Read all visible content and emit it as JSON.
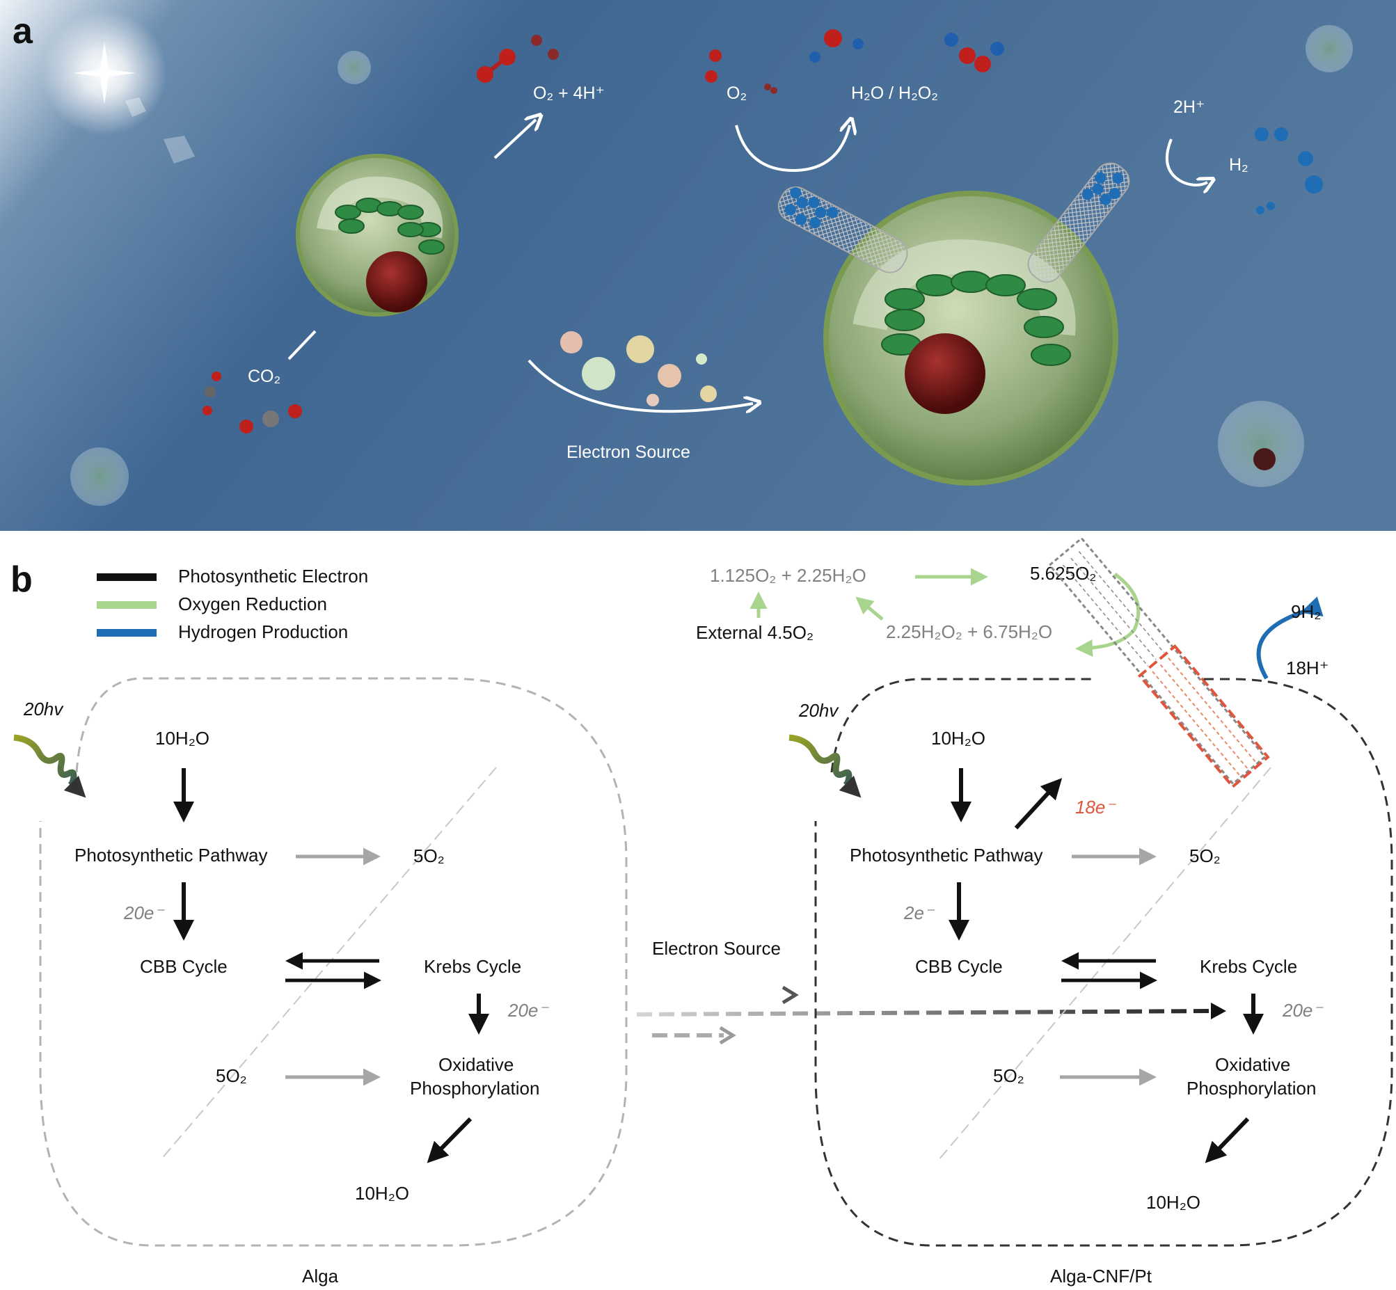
{
  "panel_a": {
    "letter": "a",
    "o2_4h": "O₂ + 4H⁺",
    "o2": "O₂",
    "h2o_h2o2": "H₂O / H₂O₂",
    "two_h": "2H⁺",
    "h2": "H₂",
    "co2": "CO₂",
    "electron_source": "Electron Source"
  },
  "panel_b": {
    "letter": "b",
    "legend": [
      {
        "label": "Photosynthetic Electron",
        "color": "#111111"
      },
      {
        "label": "Oxygen Reduction",
        "color": "#a8d48e"
      },
      {
        "label": "Hydrogen Production",
        "color": "#1f6db5"
      }
    ],
    "top": {
      "o2_h2o": "1.125O₂ + 2.25H₂O",
      "o2_total": "5.625O₂",
      "external": "External 4.5O₂",
      "h2o2_h2o": "2.25H₂O₂ + 6.75H₂O",
      "h2": "9H₂",
      "protons": "18H⁺"
    },
    "alga": {
      "hv": "20hv",
      "water_in": "10H₂O",
      "photo": "Photosynthetic Pathway",
      "o2_out": "5O₂",
      "electrons": "20e⁻",
      "cbb": "CBB Cycle",
      "krebs": "Krebs Cycle",
      "electrons_2": "20e⁻",
      "o2_in": "5O₂",
      "ox1": "Oxidative",
      "ox2": "Phosphorylation",
      "water_out": "10H₂O",
      "caption": "Alga"
    },
    "middle": {
      "electron_source": "Electron Source"
    },
    "cnf": {
      "hv": "20hv",
      "water_in": "10H₂O",
      "photo": "Photosynthetic Pathway",
      "o2_out": "5O₂",
      "electrons": "2e⁻",
      "electrons_out": "18e⁻",
      "cbb": "CBB Cycle",
      "krebs": "Krebs Cycle",
      "electrons_2": "20e⁻",
      "o2_in": "5O₂",
      "ox1": "Oxidative",
      "ox2": "Phosphorylation",
      "water_out": "10H₂O",
      "caption": "Alga-CNF/Pt"
    }
  }
}
